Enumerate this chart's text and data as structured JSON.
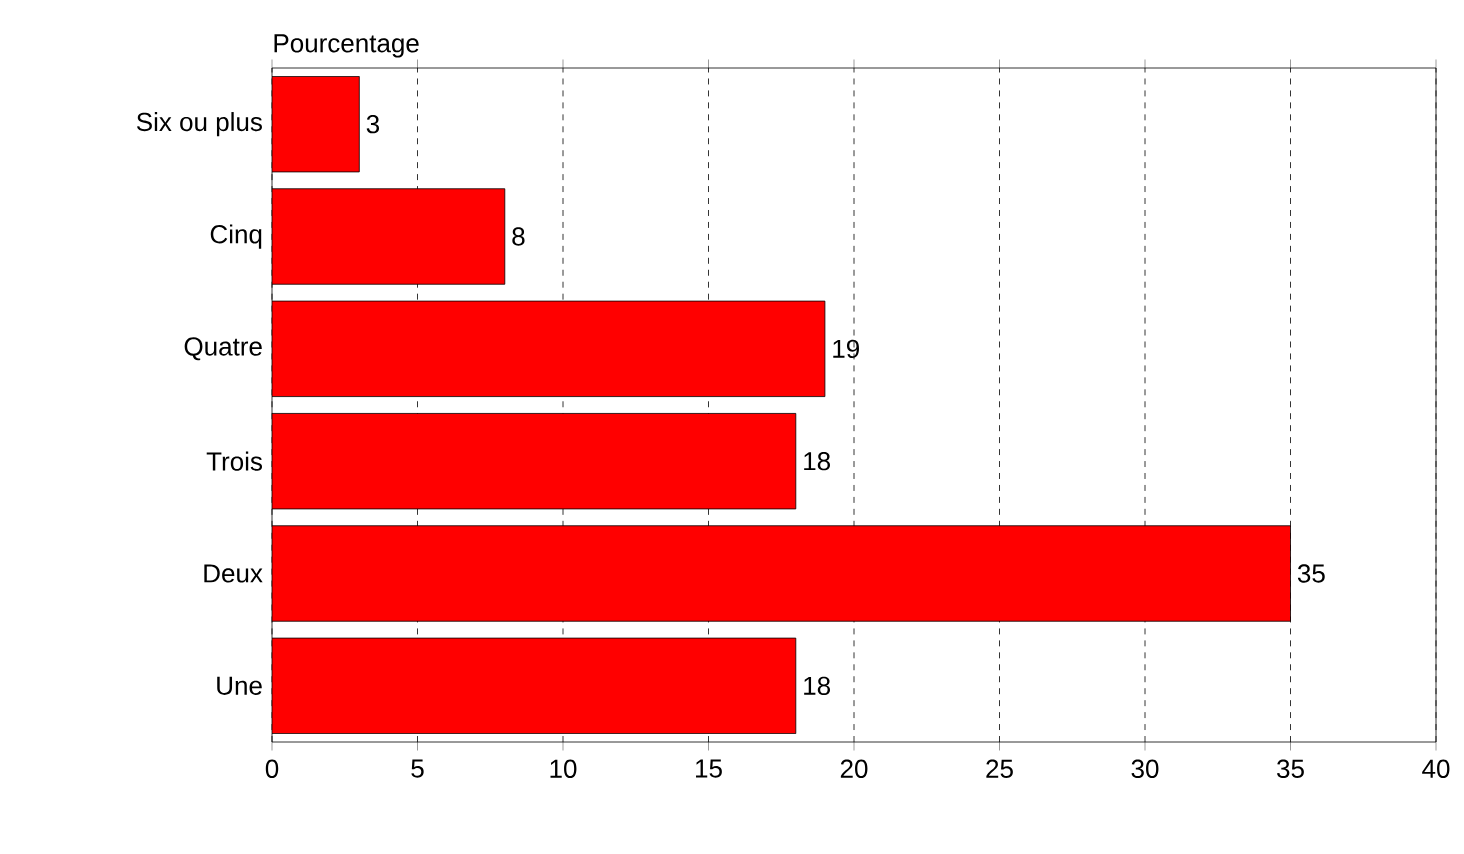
{
  "chart_data": {
    "type": "bar",
    "orientation": "horizontal",
    "title": "Pourcentage",
    "categories": [
      "Six ou plus",
      "Cinq",
      "Quatre",
      "Trois",
      "Deux",
      "Une"
    ],
    "values": [
      3,
      8,
      19,
      18,
      35,
      18
    ],
    "color": "#ff0000",
    "xlim": [
      0,
      40
    ],
    "xticks": [
      0,
      5,
      10,
      15,
      20,
      25,
      30,
      35,
      40
    ],
    "grid": "x",
    "data_labels": true
  }
}
